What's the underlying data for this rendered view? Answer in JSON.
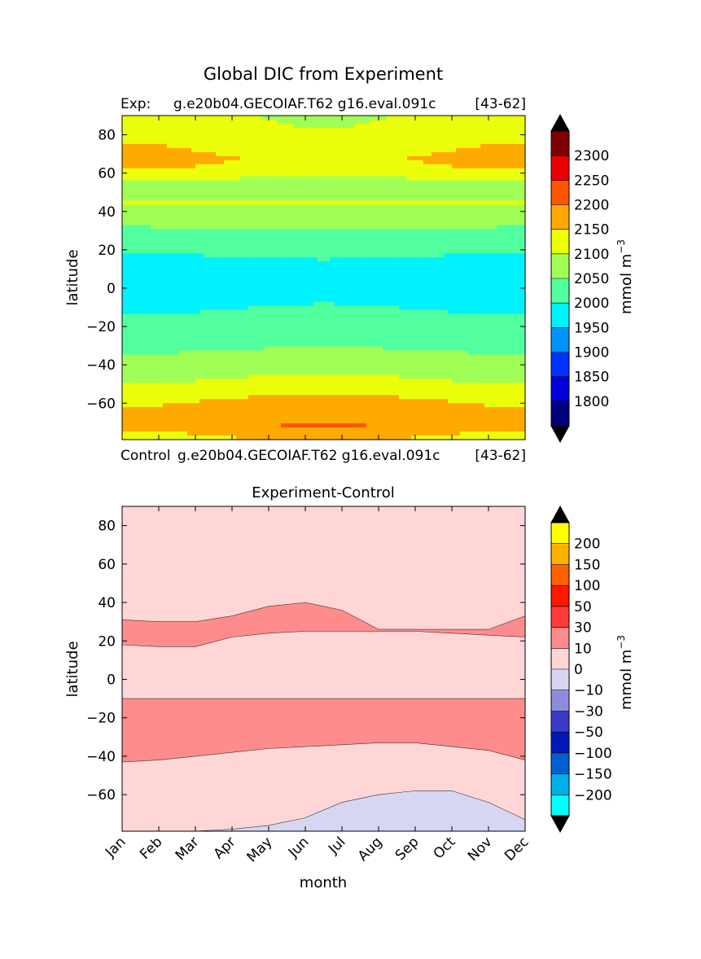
{
  "figure": {
    "title": "Global DIC from Experiment",
    "exp_label": "Exp:",
    "exp_case": "g.e20b04.GECOIAF.T62 g16.eval.091c",
    "exp_years": "[43-62]",
    "ctrl_label": "Control",
    "ctrl_case": "g.e20b04.GECOIAF.T62 g16.eval.091c",
    "ctrl_years": "[43-62]"
  },
  "chart_data": [
    {
      "type": "heatmap",
      "title": "",
      "xlabel": "",
      "ylabel": "latitude",
      "colorbar_label": "mmol m",
      "colorbar_label_sup": "−3",
      "xlim": [
        0,
        11
      ],
      "ylim": [
        -79,
        90
      ],
      "yticks": [
        80,
        60,
        40,
        20,
        0,
        -20,
        -40,
        -60
      ],
      "ytick_labels": [
        "80",
        "60",
        "40",
        "20",
        "0",
        "−20",
        "−40",
        "−60"
      ],
      "levels": [
        1750,
        1800,
        1850,
        1900,
        1950,
        2000,
        2050,
        2100,
        2150,
        2200,
        2250,
        2300,
        2350
      ],
      "level_labels": [
        "1800",
        "1850",
        "1900",
        "1950",
        "2000",
        "2050",
        "2100",
        "2150",
        "2200",
        "2250",
        "2300"
      ],
      "colors": [
        "#00007f",
        "#0000d8",
        "#0032ff",
        "#0092ff",
        "#00f2ff",
        "#52ff9f",
        "#a0ff56",
        "#ecff0a",
        "#ffaa00",
        "#ff5400",
        "#ea0000",
        "#7f0000"
      ],
      "under_color": "#000000",
      "over_color": "#000000",
      "lat_profile": [
        {
          "lat": -79,
          "value": 2118
        },
        {
          "lat": -72,
          "value": 2170
        },
        {
          "lat": -66,
          "value": 2160
        },
        {
          "lat": -58,
          "value": 2140
        },
        {
          "lat": -50,
          "value": 2100
        },
        {
          "lat": -44,
          "value": 2080
        },
        {
          "lat": -36,
          "value": 2055
        },
        {
          "lat": -26,
          "value": 2025
        },
        {
          "lat": -14,
          "value": 2000
        },
        {
          "lat": -6,
          "value": 1985
        },
        {
          "lat": 4,
          "value": 1975
        },
        {
          "lat": 12,
          "value": 1985
        },
        {
          "lat": 18,
          "value": 2000
        },
        {
          "lat": 24,
          "value": 2030
        },
        {
          "lat": 32,
          "value": 2050
        },
        {
          "lat": 38,
          "value": 2075
        },
        {
          "lat": 44,
          "value": 2105
        },
        {
          "lat": 52,
          "value": 2080
        },
        {
          "lat": 58,
          "value": 2115
        },
        {
          "lat": 64,
          "value": 2160
        },
        {
          "lat": 68,
          "value": 2170
        },
        {
          "lat": 76,
          "value": 2150
        },
        {
          "lat": 90,
          "value": 2130
        }
      ],
      "seasonal_amplitude": [
        {
          "lat": -79,
          "value": 40
        },
        {
          "lat": -60,
          "value": 25
        },
        {
          "lat": -40,
          "value": 15
        },
        {
          "lat": -20,
          "value": 5
        },
        {
          "lat": 0,
          "value": 15
        },
        {
          "lat": 20,
          "value": 5
        },
        {
          "lat": 40,
          "value": 5
        },
        {
          "lat": 60,
          "value": -20
        },
        {
          "lat": 75,
          "value": -40
        },
        {
          "lat": 90,
          "value": -40
        }
      ]
    },
    {
      "type": "heatmap",
      "title": "Experiment-Control",
      "xlabel": "month",
      "ylabel": "latitude",
      "colorbar_label": "mmol m",
      "colorbar_label_sup": "−3",
      "xlim": [
        0,
        11
      ],
      "ylim": [
        -79,
        90
      ],
      "xticks": [
        "Jan",
        "Feb",
        "Mar",
        "Apr",
        "May",
        "Jun",
        "Jul",
        "Aug",
        "Sep",
        "Oct",
        "Nov",
        "Dec"
      ],
      "yticks": [
        80,
        60,
        40,
        20,
        0,
        -20,
        -40,
        -60
      ],
      "ytick_labels": [
        "80",
        "60",
        "40",
        "20",
        "0",
        "−20",
        "−40",
        "−60"
      ],
      "levels": [
        -250,
        -200,
        -150,
        -100,
        -50,
        -30,
        -10,
        0,
        10,
        30,
        50,
        100,
        150,
        200,
        250
      ],
      "level_labels": [
        "−200",
        "−150",
        "−100",
        "−50",
        "−30",
        "−10",
        "0",
        "10",
        "30",
        "50",
        "100",
        "150",
        "200"
      ],
      "colors": [
        "#00ffff",
        "#00b0e8",
        "#0060d0",
        "#0018b8",
        "#3a3ac8",
        "#8c8cde",
        "#d6d6f2",
        "#ffd6d6",
        "#ff8c8c",
        "#ff3a3a",
        "#ff1800",
        "#ff6000",
        "#ffb000",
        "#ffff00"
      ],
      "under_color": "#000000",
      "over_color": "#000000",
      "background_value": 5,
      "regions": [
        {
          "value": 15,
          "upper": [
            31,
            30,
            30,
            33,
            38,
            40,
            36,
            26,
            26,
            26,
            26,
            33
          ],
          "lower": [
            18,
            17,
            17,
            22,
            24,
            25,
            25,
            25,
            25,
            24,
            23,
            22
          ]
        },
        {
          "value": 15,
          "upper": [
            -10,
            -10,
            -10,
            -10,
            -10,
            -10,
            -10,
            -10,
            -10,
            -10,
            -10,
            -10
          ],
          "lower": [
            -43,
            -42,
            -40,
            -38,
            -36,
            -35,
            -34,
            -33,
            -33,
            -35,
            -37,
            -42
          ]
        },
        {
          "value": -5,
          "upper": [
            -79,
            -79,
            -79,
            -78,
            -76,
            -72,
            -64,
            -60,
            -58,
            -58,
            -64,
            -73
          ],
          "lower": [
            -79,
            -79,
            -79,
            -79,
            -79,
            -79,
            -79,
            -79,
            -79,
            -79,
            -79,
            -79
          ]
        }
      ]
    }
  ]
}
